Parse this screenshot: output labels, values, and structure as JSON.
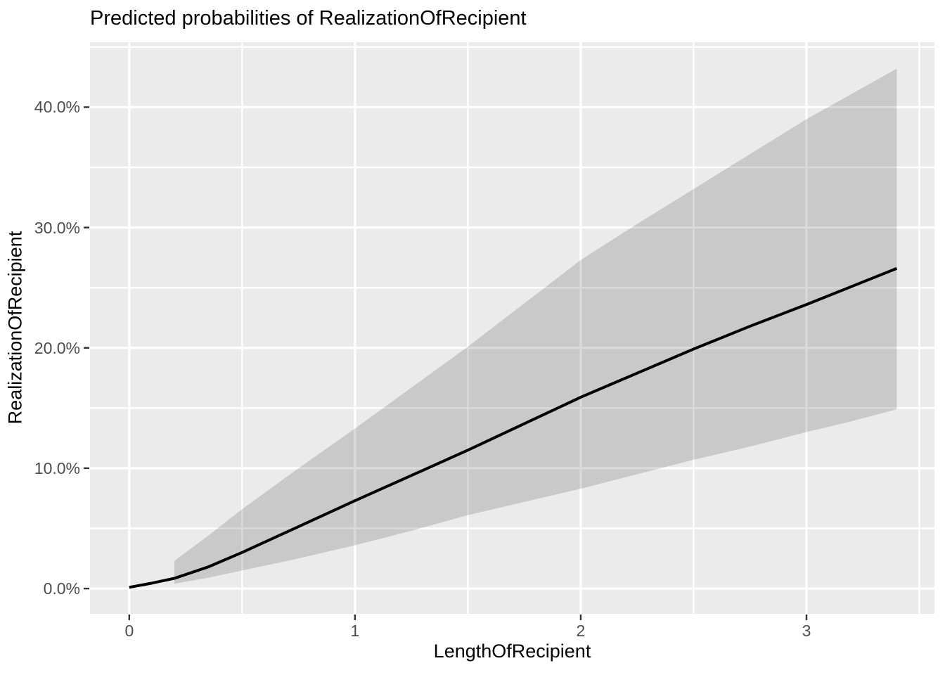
{
  "chart_data": {
    "type": "line",
    "title": "Predicted probabilities of RealizationOfRecipient",
    "xlabel": "LengthOfRecipient",
    "ylabel": "RealizationOfRecipient",
    "legend_position": "none",
    "grid": true,
    "xlim": [
      -0.174,
      3.567
    ],
    "ylim_pct": [
      -2.1,
      45.4
    ],
    "x_ticks": {
      "values": [
        0,
        1,
        2,
        3
      ],
      "labels": [
        "0",
        "1",
        "2",
        "3"
      ]
    },
    "y_ticks": {
      "values": [
        0,
        10,
        20,
        30,
        40
      ],
      "labels": [
        "0.0%",
        "10.0%",
        "20.0%",
        "30.0%",
        "40.0%"
      ]
    },
    "x_minor": [
      0.5,
      1.5,
      2.5,
      3.5
    ],
    "y_minor": [
      5,
      15,
      25,
      35,
      45
    ],
    "series": [
      {
        "name": "predicted-probability",
        "x": [
          0.0,
          0.1,
          0.2,
          0.35,
          0.5,
          0.75,
          1.0,
          1.25,
          1.5,
          1.75,
          2.0,
          2.25,
          2.5,
          2.75,
          3.0,
          3.2,
          3.4
        ],
        "y_pct": [
          0.1,
          0.45,
          0.85,
          1.8,
          3.0,
          5.15,
          7.3,
          9.4,
          11.5,
          13.7,
          15.9,
          17.9,
          19.9,
          21.8,
          23.6,
          25.1,
          26.6
        ]
      }
    ],
    "ribbon": {
      "name": "confidence-interval",
      "x": [
        0.2,
        0.35,
        0.5,
        0.75,
        1.0,
        1.25,
        1.5,
        1.75,
        2.0,
        2.25,
        2.5,
        2.75,
        3.0,
        3.2,
        3.4
      ],
      "upper_pct": [
        2.3,
        4.4,
        6.6,
        10.0,
        13.3,
        16.7,
        20.1,
        23.7,
        27.3,
        30.3,
        33.2,
        36.1,
        39.0,
        41.1,
        43.2
      ],
      "lower_pct": [
        0.4,
        0.9,
        1.5,
        2.5,
        3.6,
        4.8,
        6.1,
        7.2,
        8.3,
        9.5,
        10.7,
        11.8,
        13.0,
        13.9,
        14.9
      ]
    },
    "colors": {
      "line": "#000000",
      "ribbon": "rgba(0,0,0,0.145)",
      "panel_background": "#EBEBEB",
      "gridline": "#FFFFFF",
      "tick_mark": "#333333",
      "tick_text": "#4D4D4D",
      "title_text": "#000000"
    }
  }
}
